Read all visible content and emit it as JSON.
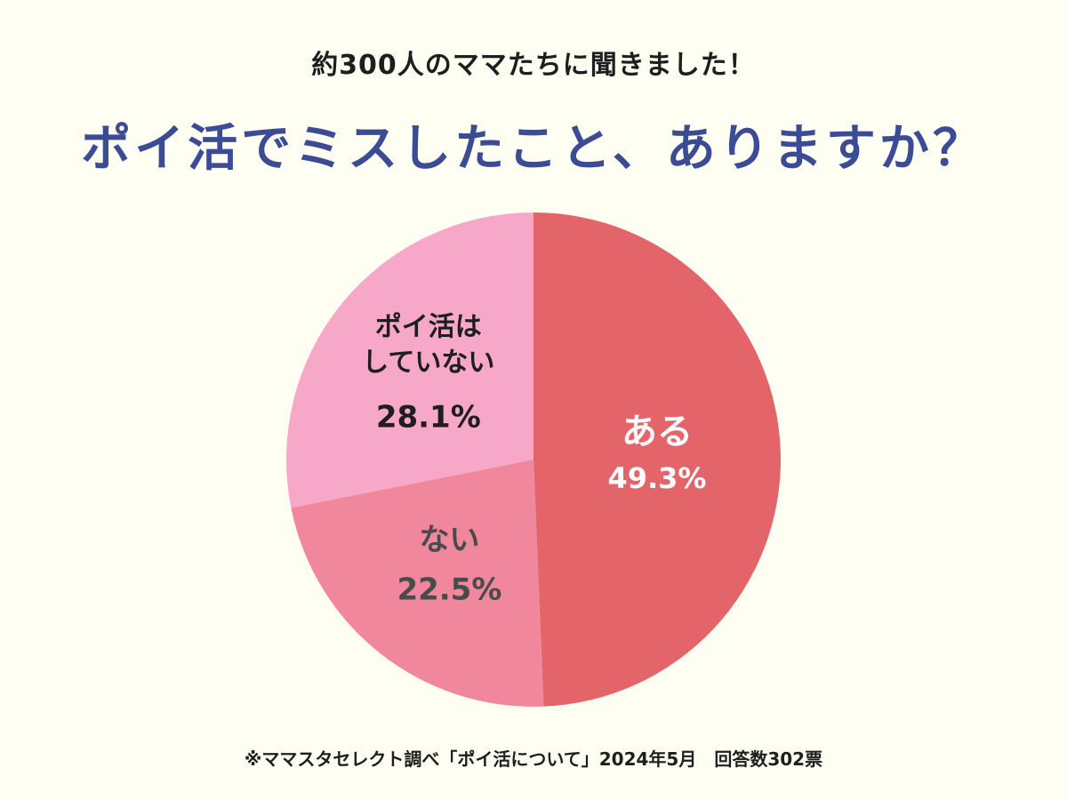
{
  "header": {
    "subtitle": "約300人のママたちに聞きました！",
    "title": "ポイ活でミスしたこと、ありますか？"
  },
  "footnote": "※ママスタセレクト調べ「ポイ活について」2024年5月　回答数302票",
  "chart_data": {
    "type": "pie",
    "title": "ポイ活でミスしたこと、ありますか？",
    "start_angle_deg": 0,
    "direction": "clockwise",
    "slices": [
      {
        "label_lines": [
          "ある"
        ],
        "value": 49.3,
        "value_label": "49.3%",
        "color": "#E36469",
        "text_color": "#FFFFFF"
      },
      {
        "label_lines": [
          "ない"
        ],
        "value": 22.5,
        "value_label": "22.5%",
        "color": "#F0879C",
        "text_color": "#4A4A4A"
      },
      {
        "label_lines": [
          "ポイ活は",
          "していない"
        ],
        "value": 28.1,
        "value_label": "28.1%",
        "color": "#F7A8C8",
        "text_color": "#1E1E1E"
      }
    ]
  }
}
